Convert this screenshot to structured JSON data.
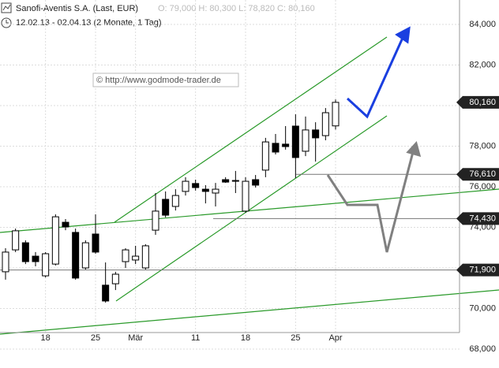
{
  "chart_data": {
    "type": "candlestick",
    "title": "Sanofi-Aventis S.A. (Last, EUR)",
    "ohlc_label": "O: 79,000  H: 80,300  L: 78,820  C: 80,160",
    "subtitle": "12.02.13 - 02.04.13 (2 Monate, 1 Tag)",
    "watermark": "© http://www.godmode-trader.de",
    "categories": [
      null,
      null,
      null,
      null,
      "18",
      null,
      null,
      null,
      null,
      "25",
      null,
      null,
      null,
      "Mär",
      null,
      null,
      null,
      null,
      null,
      "11",
      null,
      null,
      null,
      null,
      "18",
      null,
      null,
      null,
      null,
      "25",
      null,
      null,
      null,
      "Apr"
    ],
    "open": [
      71.81,
      72.89,
      73.24,
      72.58,
      71.61,
      72.19,
      74.25,
      73.75,
      72.0,
      73.67,
      71.15,
      71.22,
      72.31,
      72.39,
      72.0,
      73.86,
      75.38,
      75.03,
      75.77,
      76.16,
      75.88,
      75.69,
      76.35,
      76.27,
      74.8,
      76.35,
      76.82,
      78.14,
      78.1,
      78.99,
      77.75,
      78.8,
      78.52,
      79.0
    ],
    "high": [
      72.97,
      73.94,
      73.36,
      72.78,
      72.78,
      74.64,
      74.41,
      73.94,
      73.36,
      74.64,
      72.27,
      71.81,
      72.97,
      73.09,
      73.17,
      75.69,
      75.77,
      75.88,
      76.47,
      76.35,
      76.08,
      76.19,
      76.47,
      76.78,
      76.47,
      76.58,
      78.41,
      78.6,
      78.99,
      79.57,
      79.46,
      79.18,
      79.88,
      80.3
    ],
    "low": [
      71.42,
      72.78,
      72.19,
      72.08,
      71.53,
      72.12,
      73.86,
      71.42,
      71.92,
      72.7,
      70.29,
      70.91,
      72.0,
      72.19,
      71.92,
      73.63,
      74.49,
      74.83,
      75.57,
      75.81,
      75.18,
      75.03,
      76.19,
      75.69,
      74.72,
      75.96,
      76.47,
      77.59,
      77.83,
      76.43,
      77.51,
      77.24,
      78.29,
      78.82
    ],
    "close": [
      72.78,
      73.83,
      72.31,
      72.31,
      72.7,
      74.52,
      74.02,
      71.5,
      73.24,
      72.78,
      70.37,
      71.69,
      72.89,
      72.58,
      73.09,
      74.8,
      74.6,
      75.57,
      76.27,
      75.96,
      75.77,
      75.88,
      76.23,
      76.31,
      76.27,
      76.08,
      78.21,
      77.71,
      77.98,
      77.44,
      78.8,
      78.41,
      79.65,
      80.16
    ],
    "up_color": "#ffffff",
    "down_color": "#000000",
    "ylim": [
      68,
      84
    ],
    "yticks": [
      {
        "value": 68,
        "label": "68,000"
      },
      {
        "value": 70,
        "label": "70,000"
      },
      {
        "value": 72,
        "label": "72,000"
      },
      {
        "value": 74,
        "label": "74,000"
      },
      {
        "value": 76,
        "label": "76,000"
      },
      {
        "value": 78,
        "label": "78,000"
      },
      {
        "value": 80,
        "label": "80,000"
      },
      {
        "value": 82,
        "label": "82,000"
      },
      {
        "value": 84,
        "label": "84,000"
      }
    ],
    "price_levels": [
      {
        "value": 80.16,
        "label": "80,160"
      },
      {
        "value": 76.61,
        "label": "76,610"
      },
      {
        "value": 74.43,
        "label": "74,430"
      },
      {
        "value": 71.9,
        "label": "71,900"
      }
    ],
    "grid": true
  }
}
